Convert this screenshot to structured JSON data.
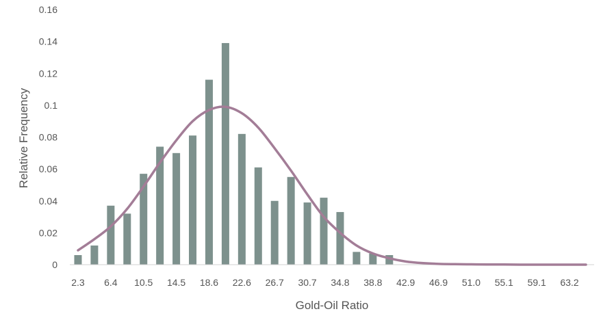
{
  "chart_data": {
    "type": "bar",
    "xlabel": "Gold-Oil Ratio",
    "ylabel": "Relative Frequency",
    "ylim": [
      0,
      0.16
    ],
    "yticks": [
      "0",
      "0.02",
      "0.04",
      "0.06",
      "0.08",
      "0.1",
      "0.12",
      "0.14",
      "0.16"
    ],
    "grid": false,
    "bar_color": "#7d918d",
    "curve_color": "#a37d97",
    "categories": [
      "2.3",
      "4.3",
      "6.4",
      "8.4",
      "10.5",
      "12.5",
      "14.5",
      "16.6",
      "18.6",
      "20.6",
      "22.6",
      "24.7",
      "26.7",
      "28.7",
      "30.7",
      "32.8",
      "34.8",
      "36.8",
      "38.8",
      "40.9",
      "42.9",
      "44.9",
      "46.9",
      "48.9",
      "51.0",
      "53.0",
      "55.1",
      "57.1",
      "59.1",
      "61.2",
      "63.2",
      "65.2"
    ],
    "tick_labels": [
      "2.3",
      "6.4",
      "10.5",
      "14.5",
      "18.6",
      "22.6",
      "26.7",
      "30.7",
      "34.8",
      "38.8",
      "42.9",
      "46.9",
      "51.0",
      "55.1",
      "59.1",
      "63.2"
    ],
    "series": [
      {
        "type": "bar",
        "values": [
          0.006,
          0.012,
          0.037,
          0.032,
          0.057,
          0.074,
          0.07,
          0.081,
          0.116,
          0.139,
          0.082,
          0.061,
          0.04,
          0.055,
          0.039,
          0.042,
          0.033,
          0.008,
          0.007,
          0.006,
          0,
          0,
          0,
          0,
          0,
          0,
          0,
          0,
          0,
          0,
          0,
          0
        ]
      },
      {
        "type": "line",
        "values": [
          0.009,
          0.016,
          0.024,
          0.035,
          0.049,
          0.064,
          0.078,
          0.09,
          0.097,
          0.099,
          0.095,
          0.086,
          0.073,
          0.059,
          0.044,
          0.03,
          0.02,
          0.012,
          0.007,
          0.004,
          0.002,
          0.001,
          0.0005,
          0.0003,
          0.0002,
          0.0001,
          0.0001,
          0,
          0,
          0,
          0,
          0
        ]
      }
    ]
  }
}
